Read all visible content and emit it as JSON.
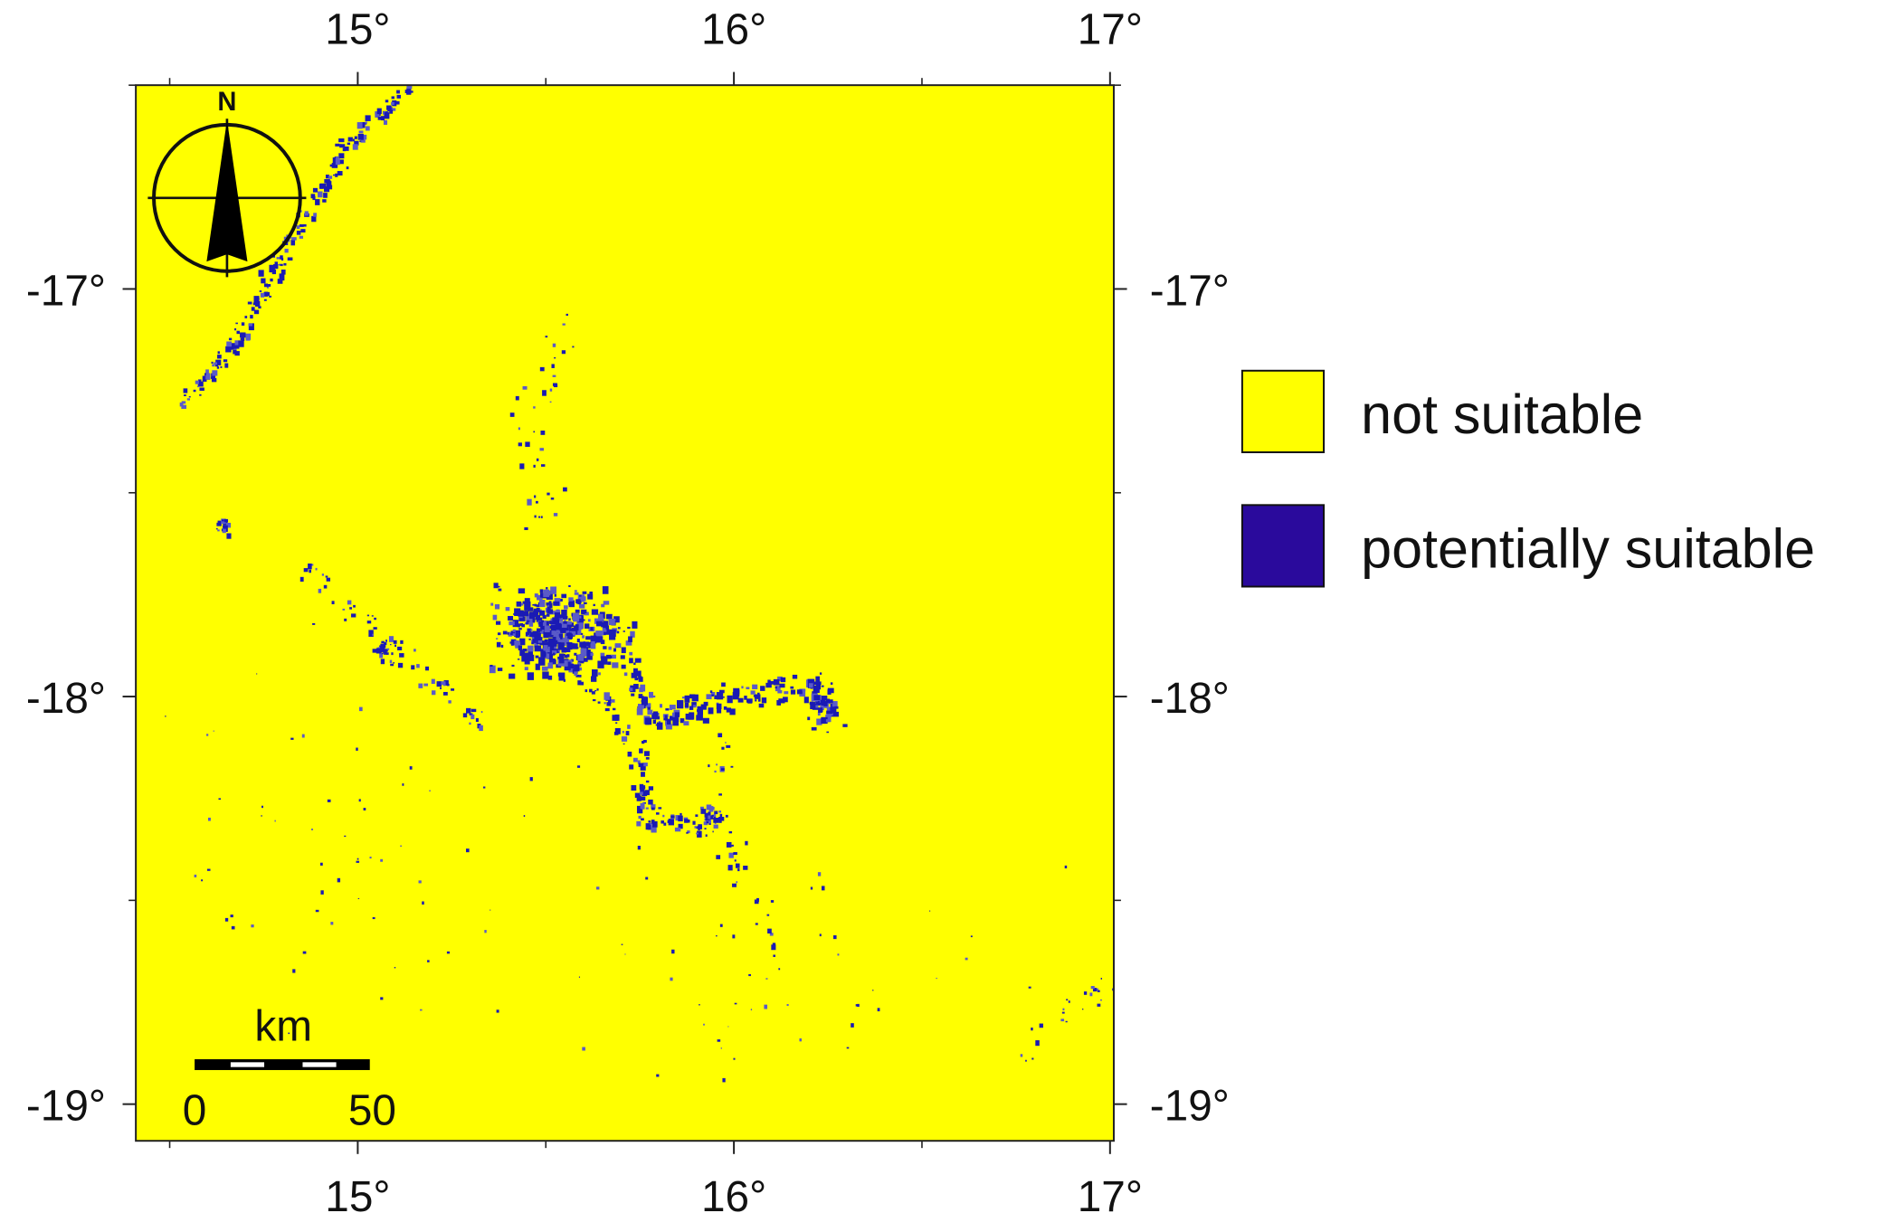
{
  "map": {
    "xlim": [
      14.41,
      17.01
    ],
    "ylim": [
      -16.5,
      -19.09
    ],
    "xticks": [
      {
        "value": 15,
        "label": "15°"
      },
      {
        "value": 16,
        "label": "16°"
      },
      {
        "value": 17,
        "label": "17°"
      }
    ],
    "yticks": [
      {
        "value": -17,
        "label": "-17°"
      },
      {
        "value": -18,
        "label": "-18°"
      },
      {
        "value": -19,
        "label": "-19°"
      }
    ],
    "minor_xticks": [
      14.5,
      15.5,
      16.5
    ],
    "minor_yticks": [
      -16.5,
      -17.5,
      -18.5
    ],
    "north_label": "N",
    "scale_bar": {
      "unit": "km",
      "labels": [
        "0",
        "50"
      ]
    },
    "legend": [
      {
        "name": "not suitable",
        "color": "#ffff00"
      },
      {
        "name": "potentially suitable",
        "color": "#2a0a9c"
      }
    ]
  }
}
